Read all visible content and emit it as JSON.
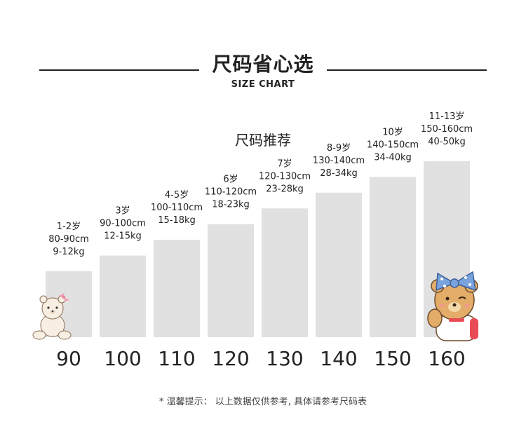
{
  "header": {
    "title": "尺码省心选",
    "subtitle": "SIZE CHART"
  },
  "recommend_label": "尺码推荐",
  "footer_note": "* 温馨提示： 以上数据仅供参考, 具体请参考尺码表",
  "colors": {
    "bar": "#e1e1e1",
    "text": "#222222"
  },
  "icons": [
    "bear-small-icon",
    "bear-bow-icon"
  ],
  "chart_data": {
    "type": "bar",
    "categories": [
      "90",
      "100",
      "110",
      "120",
      "130",
      "140",
      "150",
      "160"
    ],
    "values": [
      90,
      100,
      110,
      120,
      130,
      140,
      150,
      160
    ],
    "ylim": [
      60,
      160
    ],
    "annotations": [
      {
        "age": "1-2岁",
        "height": "80-90cm",
        "weight": "9-12kg"
      },
      {
        "age": "3岁",
        "height": "90-100cm",
        "weight": "12-15kg"
      },
      {
        "age": "4-5岁",
        "height": "100-110cm",
        "weight": "15-18kg"
      },
      {
        "age": "6岁",
        "height": "110-120cm",
        "weight": "18-23kg"
      },
      {
        "age": "7岁",
        "height": "120-130cm",
        "weight": "23-28kg"
      },
      {
        "age": "8-9岁",
        "height": "130-140cm",
        "weight": "28-34kg"
      },
      {
        "age": "10岁",
        "height": "140-150cm",
        "weight": "34-40kg"
      },
      {
        "age": "11-13岁",
        "height": "150-160cm",
        "weight": "40-50kg"
      }
    ],
    "grid": false,
    "legend": "none"
  }
}
